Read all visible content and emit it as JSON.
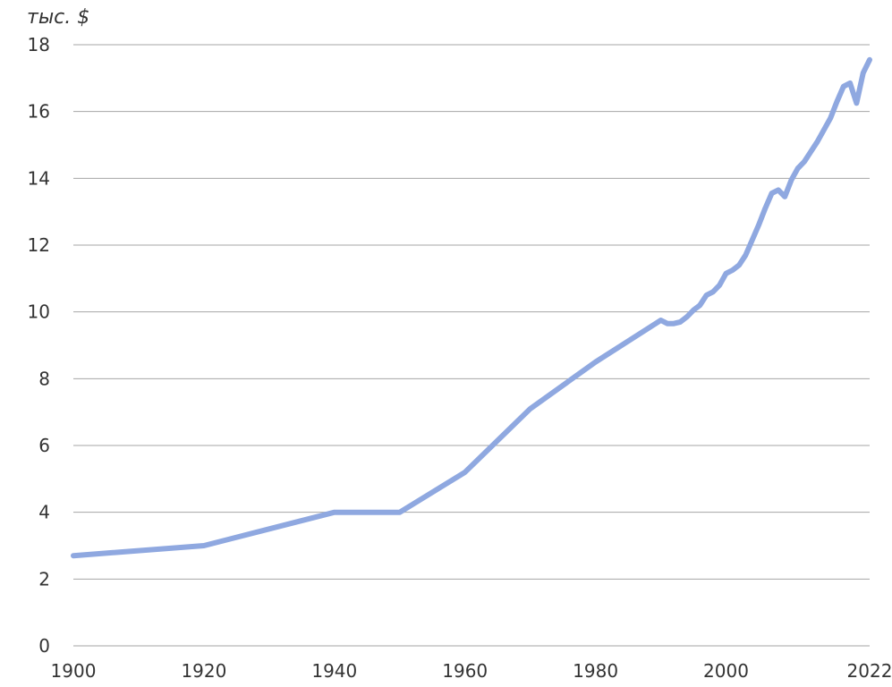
{
  "chart_data": {
    "type": "line",
    "title": "",
    "ylabel": "тыс. $",
    "xlabel": "",
    "xlim": [
      1900,
      2022
    ],
    "ylim": [
      0,
      18
    ],
    "y_ticks": [
      "0",
      "2",
      "4",
      "6",
      "8",
      "10",
      "12",
      "14",
      "16",
      "18"
    ],
    "x_ticks": [
      "1900",
      "1920",
      "1940",
      "1960",
      "1980",
      "2000",
      "2022"
    ],
    "grid": true,
    "line_color": "#8fa8e0",
    "series": [
      {
        "x": [
          1900,
          1920,
          1930,
          1940,
          1950,
          1960,
          1970,
          1980,
          1990,
          1991,
          1992,
          1993,
          1994,
          1995,
          1996,
          1997,
          1998,
          1999,
          2000,
          2001,
          2002,
          2003,
          2004,
          2005,
          2006,
          2007,
          2008,
          2009,
          2010,
          2011,
          2012,
          2013,
          2014,
          2015,
          2016,
          2017,
          2018,
          2019,
          2020,
          2021,
          2022
        ],
        "y": [
          2.7,
          3.0,
          3.5,
          4.0,
          4.0,
          5.2,
          7.1,
          8.5,
          9.75,
          9.65,
          9.65,
          9.7,
          9.85,
          10.05,
          10.2,
          10.5,
          10.6,
          10.8,
          11.15,
          11.25,
          11.4,
          11.7,
          12.15,
          12.6,
          13.1,
          13.55,
          13.65,
          13.45,
          13.95,
          14.3,
          14.5,
          14.8,
          15.1,
          15.45,
          15.8,
          16.3,
          16.75,
          16.85,
          16.25,
          17.15,
          17.55
        ]
      }
    ]
  }
}
